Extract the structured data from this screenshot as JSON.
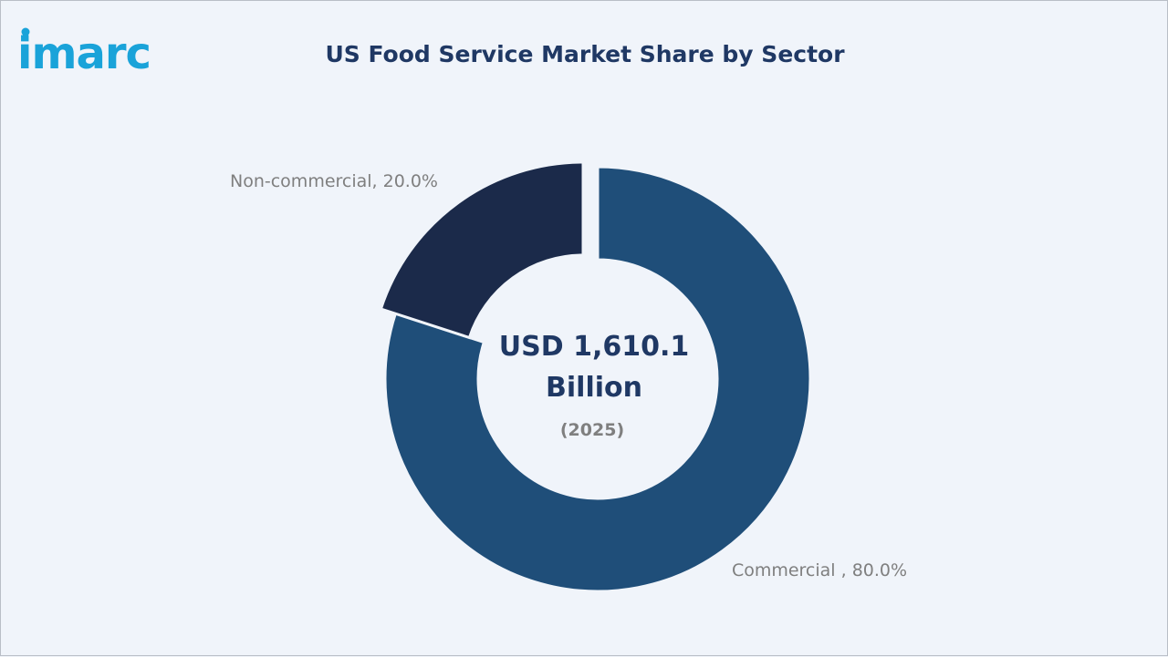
{
  "logo": {
    "text": "imarc",
    "color": "#1aa3d9"
  },
  "chart_data": {
    "type": "pie",
    "variant": "donut",
    "title": "US Food Service Market Share by Sector",
    "center_value_line1": "USD 1,610.1",
    "center_value_line2": "Billion",
    "center_year": "(2025)",
    "series": [
      {
        "name": "Commercial",
        "value": 80.0,
        "label": "Commercial , 80.0%",
        "color": "#1f4e79"
      },
      {
        "name": "Non-commercial",
        "value": 20.0,
        "label": "Non-commercial, 20.0%",
        "color": "#1b2a4a"
      }
    ]
  }
}
